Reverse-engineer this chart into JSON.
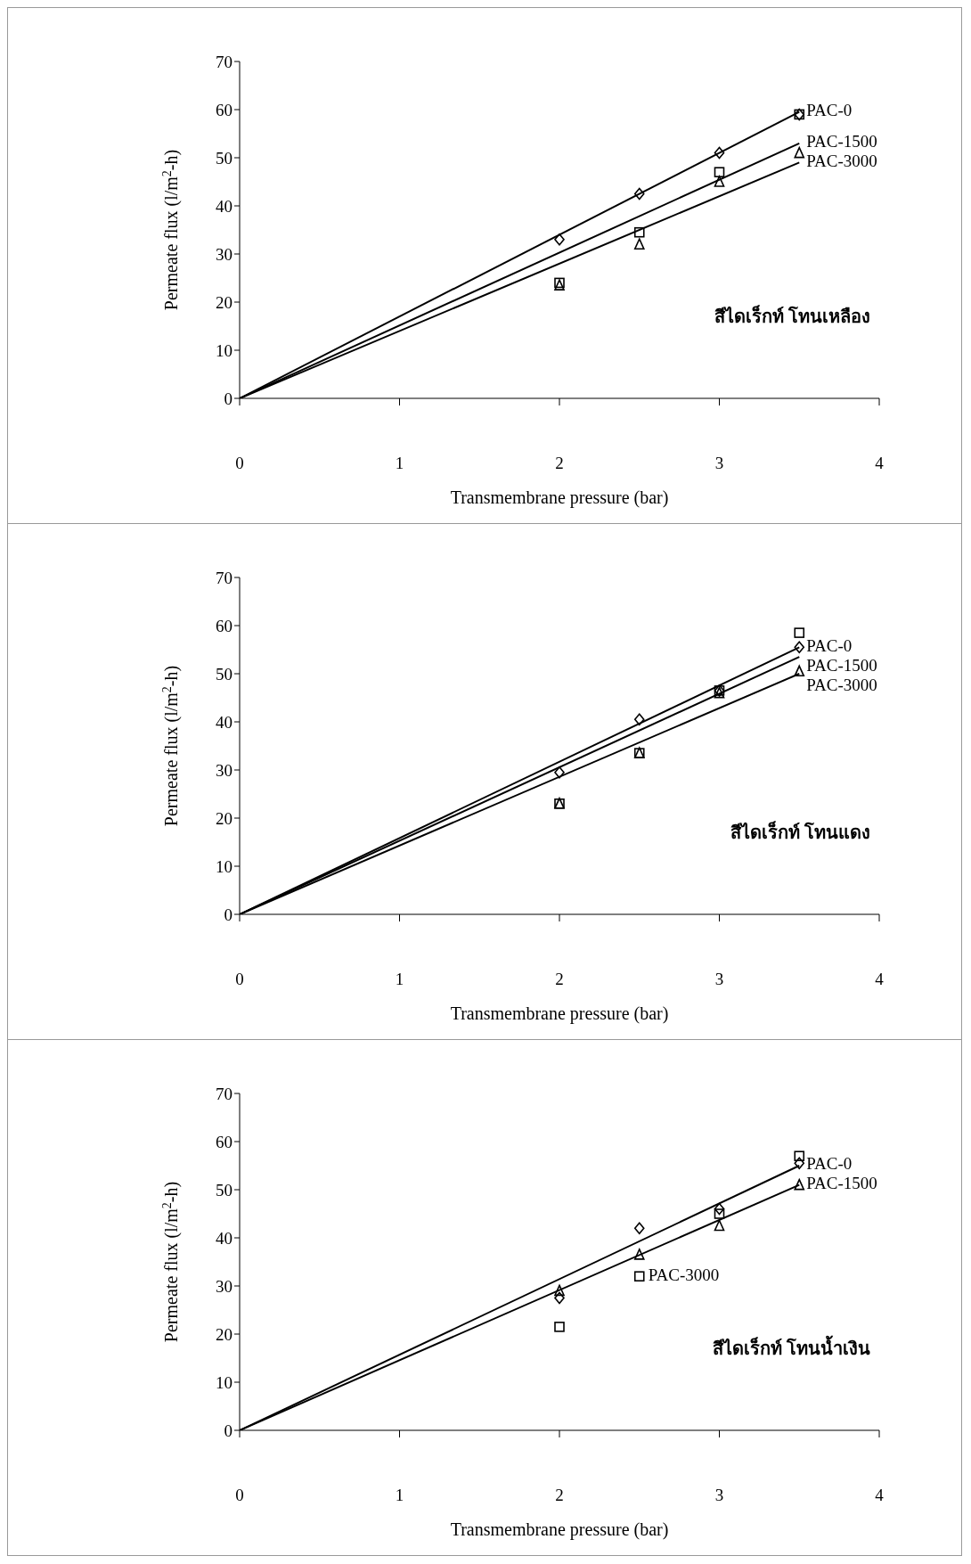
{
  "chart_data": [
    {
      "type": "scatter",
      "xlabel": "Transmembrane pressure (bar)",
      "ylabel": "Permeate flux (l/m$^{2}$-h)",
      "xlim": [
        0,
        4
      ],
      "xticks": [
        0,
        1,
        2,
        3,
        4
      ],
      "ylim": [
        0,
        70
      ],
      "yticks": [
        0,
        10,
        20,
        30,
        40,
        50,
        60,
        70
      ],
      "grid": false,
      "annotations": [
        "สีไดเร็กท์ โทนเหลือง"
      ],
      "series": [
        {
          "type": "scatter",
          "marker": "diamond",
          "color": "#000000",
          "x": [
            2,
            2.5,
            3,
            3.5
          ],
          "values": [
            33,
            42.5,
            51,
            59
          ]
        },
        {
          "type": "scatter",
          "marker": "square",
          "color": "#000000",
          "x": [
            2,
            2.5,
            3,
            3.5
          ],
          "values": [
            24,
            34.5,
            47,
            59
          ]
        },
        {
          "type": "scatter",
          "marker": "triangle",
          "color": "#000000",
          "x": [
            2,
            2.5,
            3,
            3.5
          ],
          "values": [
            23.5,
            32,
            45,
            51
          ]
        },
        {
          "type": "line",
          "name": "PAC-0",
          "color": "#000000",
          "x": [
            0,
            3.5
          ],
          "values": [
            0,
            59.5
          ]
        },
        {
          "type": "line",
          "name": "PAC-1500",
          "color": "#000000",
          "x": [
            0,
            3.5
          ],
          "values": [
            0,
            53
          ]
        },
        {
          "type": "line",
          "name": "PAC-3000",
          "color": "#000000",
          "x": [
            0,
            3.5
          ],
          "values": [
            0,
            49
          ]
        }
      ]
    },
    {
      "type": "scatter",
      "xlabel": "Transmembrane pressure (bar)",
      "ylabel": "Permeate flux (l/m$^{2}$-h)",
      "xlim": [
        0,
        4
      ],
      "xticks": [
        0,
        1,
        2,
        3,
        4
      ],
      "ylim": [
        0,
        70
      ],
      "yticks": [
        0,
        10,
        20,
        30,
        40,
        50,
        60,
        70
      ],
      "grid": false,
      "annotations": [
        "สีไดเร็กท์ โทนแดง"
      ],
      "series": [
        {
          "type": "scatter",
          "marker": "diamond",
          "color": "#000000",
          "x": [
            2,
            2.5,
            3,
            3.5
          ],
          "values": [
            29.5,
            40.5,
            46.5,
            55.5
          ]
        },
        {
          "type": "scatter",
          "marker": "square",
          "color": "#000000",
          "x": [
            2,
            2.5,
            3,
            3.5
          ],
          "values": [
            23,
            33.5,
            46.5,
            58.5
          ]
        },
        {
          "type": "scatter",
          "marker": "triangle",
          "color": "#000000",
          "x": [
            2,
            2.5,
            3,
            3.5
          ],
          "values": [
            23,
            33.5,
            46,
            50.5
          ]
        },
        {
          "type": "line",
          "name": "PAC-0",
          "color": "#000000",
          "x": [
            0,
            3.5
          ],
          "values": [
            0,
            55.5
          ]
        },
        {
          "type": "line",
          "name": "PAC-1500",
          "color": "#000000",
          "x": [
            0,
            3.5
          ],
          "values": [
            0,
            53.5
          ]
        },
        {
          "type": "line",
          "name": "PAC-3000",
          "color": "#000000",
          "x": [
            0,
            3.5
          ],
          "values": [
            0,
            50
          ]
        }
      ]
    },
    {
      "type": "scatter",
      "xlabel": "Transmembrane pressure (bar)",
      "ylabel": "Permeate flux (l/m$^{2}$-h)",
      "xlim": [
        0,
        4
      ],
      "xticks": [
        0,
        1,
        2,
        3,
        4
      ],
      "ylim": [
        0,
        70
      ],
      "yticks": [
        0,
        10,
        20,
        30,
        40,
        50,
        60,
        70
      ],
      "grid": false,
      "annotations": [
        "สีไดเร็กท์ โทนน้ำเงิน"
      ],
      "series": [
        {
          "type": "scatter",
          "marker": "diamond",
          "color": "#000000",
          "x": [
            2,
            2.5,
            3,
            3.5
          ],
          "values": [
            27.5,
            42,
            46,
            55.5
          ]
        },
        {
          "type": "scatter",
          "name": "PAC-3000",
          "marker": "square",
          "color": "#000000",
          "x": [
            2,
            2.5,
            3,
            3.5
          ],
          "values": [
            21.5,
            32,
            45,
            57
          ]
        },
        {
          "type": "scatter",
          "marker": "triangle",
          "color": "#000000",
          "x": [
            2,
            2.5,
            3,
            3.5
          ],
          "values": [
            29,
            36.5,
            42.5,
            51
          ]
        },
        {
          "type": "line",
          "name": "PAC-0",
          "color": "#000000",
          "x": [
            0,
            3.5
          ],
          "values": [
            0,
            55
          ]
        },
        {
          "type": "line",
          "name": "PAC-1500",
          "color": "#000000",
          "x": [
            0,
            3.5
          ],
          "values": [
            0,
            51
          ]
        }
      ]
    }
  ]
}
